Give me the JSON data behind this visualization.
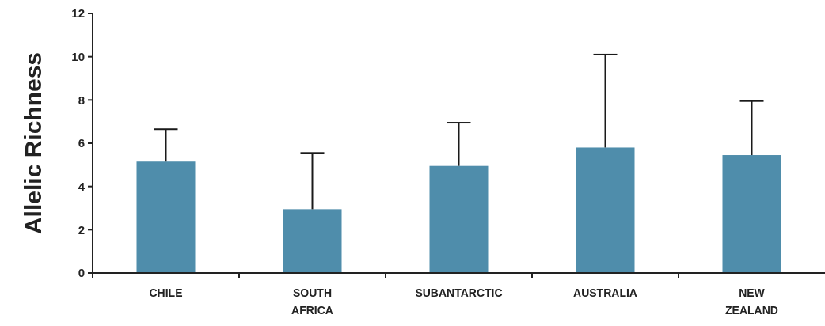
{
  "chart_data": {
    "type": "bar",
    "ylabel": "Allelic Richness",
    "categories": [
      "CHILE",
      "SOUTH AFRICA",
      "SUBANTARCTIC",
      "AUSTRALIA",
      "NEW ZEALAND"
    ],
    "values": [
      5.15,
      2.95,
      4.95,
      5.8,
      5.45
    ],
    "errors": [
      [
        5.15,
        6.65
      ],
      [
        2.95,
        5.55
      ],
      [
        4.95,
        6.95
      ],
      [
        5.8,
        10.1
      ],
      [
        5.45,
        7.95
      ]
    ],
    "color": "#4f8dab",
    "ylim": [
      0,
      12
    ],
    "yticks": [
      0,
      2,
      4,
      6,
      8,
      10,
      12
    ],
    "grid": false
  }
}
